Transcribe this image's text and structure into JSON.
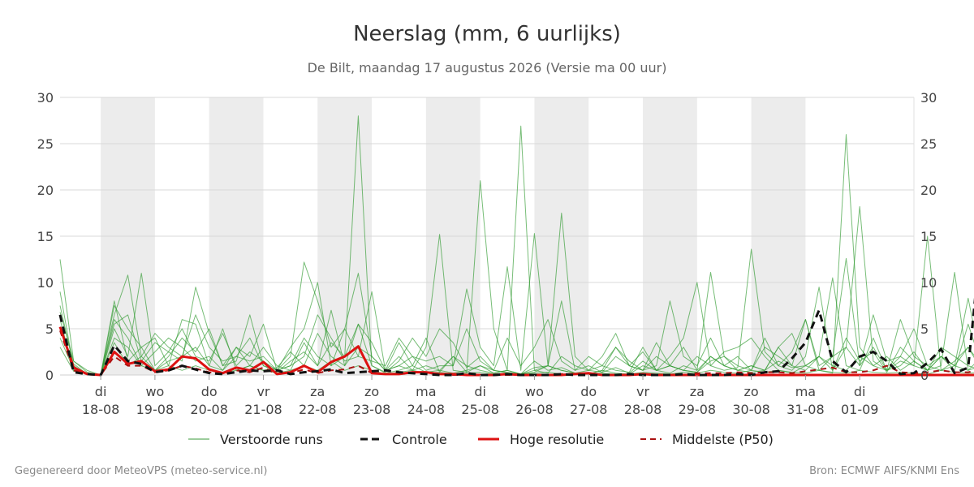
{
  "footer": {
    "left": "Gegenereerd door MeteoVPS (meteo-service.nl)",
    "right": "Bron: ECMWF AIFS/KNMI Ens"
  },
  "chart_data": {
    "type": "line",
    "title": "Neerslag (mm, 6 uurlijks)",
    "subtitle": "De Bilt, maandag 17 augustus 2026 (Versie ma 00 uur)",
    "ylim": [
      0,
      30
    ],
    "yticks": [
      0,
      5,
      10,
      15,
      20,
      25,
      30
    ],
    "xlim": [
      -0.75,
      15
    ],
    "x_ticks": [
      {
        "x": 0,
        "day": "di",
        "date": "18-08"
      },
      {
        "x": 1,
        "day": "wo",
        "date": "19-08"
      },
      {
        "x": 2,
        "day": "do",
        "date": "20-08"
      },
      {
        "x": 3,
        "day": "vr",
        "date": "21-08"
      },
      {
        "x": 4,
        "day": "za",
        "date": "22-08"
      },
      {
        "x": 5,
        "day": "zo",
        "date": "23-08"
      },
      {
        "x": 6,
        "day": "ma",
        "date": "24-08"
      },
      {
        "x": 7,
        "day": "di",
        "date": "25-08"
      },
      {
        "x": 8,
        "day": "wo",
        "date": "26-08"
      },
      {
        "x": 9,
        "day": "do",
        "date": "27-08"
      },
      {
        "x": 10,
        "day": "vr",
        "date": "28-08"
      },
      {
        "x": 11,
        "day": "za",
        "date": "29-08"
      },
      {
        "x": 12,
        "day": "zo",
        "date": "30-08"
      },
      {
        "x": 13,
        "day": "ma",
        "date": "31-08"
      },
      {
        "x": 14,
        "day": "di",
        "date": "01-09"
      }
    ],
    "shaded_days": [
      [
        0,
        1
      ],
      [
        2,
        3
      ],
      [
        4,
        5
      ],
      [
        6,
        7
      ],
      [
        8,
        9
      ],
      [
        10,
        11
      ],
      [
        12,
        13
      ]
    ],
    "grid": true,
    "legend_position": "bottom",
    "legend": [
      {
        "label": "Verstoorde runs",
        "color": "#3a9a3a",
        "style": "thin"
      },
      {
        "label": "Controle",
        "color": "#111111",
        "style": "dashed"
      },
      {
        "label": "Hoge resolutie",
        "color": "#dd1111",
        "style": "solid"
      },
      {
        "label": "Middelste (P50)",
        "color": "#aa1111",
        "style": "dashed-thin"
      }
    ],
    "series_x_start": -0.75,
    "series_x_step": 0.25,
    "series": [
      {
        "name": "Controle",
        "values": [
          6.5,
          0.3,
          0.1,
          0.0,
          3.2,
          1.5,
          1.2,
          0.3,
          0.5,
          1.0,
          0.6,
          0.2,
          0.1,
          0.3,
          0.5,
          0.4,
          0.5,
          0.1,
          0.3,
          0.4,
          0.6,
          0.2,
          0.3,
          0.4,
          0.5,
          0.3,
          0.2,
          0.1,
          0.0,
          0.0,
          0.2,
          0.0,
          0.0,
          0.1,
          0.0,
          0.0,
          0.0,
          0.1,
          0.0,
          0.0,
          0.0,
          0.0,
          0.1,
          0.0,
          0.0,
          0.0,
          0.1,
          0.0,
          0.0,
          0.0,
          0.1,
          0.0,
          0.3,
          0.4,
          1.8,
          3.5,
          7.0,
          1.5,
          0.3,
          2.0,
          2.5,
          1.5,
          0.1,
          0.2,
          1.3,
          2.8,
          0.2,
          0.8,
          15.3,
          9.0,
          2.0,
          0.5
        ]
      },
      {
        "name": "Hoge resolutie",
        "values": [
          5.2,
          0.8,
          0.1,
          0.0,
          2.5,
          1.2,
          1.5,
          0.4,
          0.6,
          2.0,
          1.8,
          0.6,
          0.2,
          0.8,
          0.5,
          1.4,
          0.1,
          0.3,
          1.0,
          0.3,
          1.4,
          2.0,
          3.1,
          0.2,
          0.1,
          0.1,
          0.3,
          0.3,
          0.1,
          0.1,
          0.0,
          0.0,
          0.0,
          0.1,
          0.0,
          0.0,
          0.0,
          0.0,
          0.1,
          0.2,
          0.0,
          0.0,
          0.0,
          0.1,
          0.0,
          0.0,
          0.0,
          0.0,
          0.0,
          0.0,
          0.0,
          0.0,
          0.0,
          0.0,
          0.0,
          0.0,
          0.0,
          0.0,
          0.0,
          0.0,
          0.0,
          0.0,
          0.0,
          0.0,
          0.0,
          0.0,
          0.0,
          0.0,
          0.0,
          0.0,
          0.0,
          0.0
        ]
      },
      {
        "name": "Middelste (P50)",
        "values": [
          4.8,
          0.5,
          0.1,
          0.0,
          2.0,
          1.0,
          1.0,
          0.3,
          0.5,
          1.0,
          0.7,
          0.3,
          0.1,
          0.5,
          0.3,
          0.8,
          0.1,
          0.2,
          0.6,
          0.2,
          0.5,
          0.6,
          1.0,
          0.2,
          0.1,
          0.1,
          0.2,
          0.2,
          0.1,
          0.0,
          0.0,
          0.0,
          0.0,
          0.0,
          0.0,
          0.0,
          0.0,
          0.1,
          0.1,
          0.1,
          0.0,
          0.0,
          0.0,
          0.1,
          0.0,
          0.0,
          0.0,
          0.2,
          0.2,
          0.2,
          0.3,
          0.2,
          0.3,
          0.3,
          0.2,
          0.4,
          0.6,
          0.8,
          0.3,
          0.3,
          0.5,
          1.0,
          0.3,
          0.2,
          0.3,
          0.5,
          0.3,
          0.3,
          0.6,
          0.5,
          0.3,
          0.2
        ]
      }
    ],
    "ensemble_values": [
      [
        12.5,
        1.5,
        0.5,
        0.0,
        7.5,
        5.0,
        3.0,
        0.5,
        2.0,
        4.0,
        2.5,
        5.0,
        1.0,
        3.0,
        2.0,
        5.5,
        0.5,
        2.0,
        12.2,
        8.0,
        3.0,
        5.0,
        11.0,
        2.0,
        0.5,
        3.5,
        1.0,
        4.0,
        0.3,
        2.0,
        1.0,
        0.5,
        0.2,
        0.5,
        0.1,
        0.8,
        1.0,
        0.5,
        0.2,
        0.1,
        0.5,
        3.0,
        1.0,
        2.5,
        0.5,
        2.0,
        4.0,
        10.0,
        1.0,
        2.5,
        3.0,
        4.0,
        2.0,
        0.5,
        0.2,
        1.0,
        2.0,
        0.5,
        4.0,
        1.5,
        2.5,
        0.3,
        3.0,
        1.5,
        0.5,
        2.0,
        1.0,
        3.0,
        1.0,
        2.0,
        0.5,
        1.5
      ],
      [
        9.0,
        0.8,
        0.2,
        0.0,
        6.5,
        10.8,
        2.0,
        4.5,
        3.0,
        2.0,
        6.5,
        3.0,
        1.5,
        2.0,
        1.5,
        2.0,
        0.5,
        3.0,
        5.0,
        10.0,
        1.0,
        2.0,
        28.0,
        1.0,
        0.3,
        1.5,
        4.0,
        2.0,
        5.0,
        3.5,
        0.8,
        2.0,
        0.5,
        0.2,
        0.1,
        0.5,
        0.2,
        2.0,
        1.0,
        0.5,
        0.3,
        0.8,
        0.2,
        1.5,
        0.5,
        1.0,
        0.5,
        0.3,
        2.0,
        1.0,
        0.5,
        0.3,
        0.5,
        1.5,
        0.8,
        1.0,
        0.5,
        0.2,
        26.0,
        3.0,
        1.0,
        2.0,
        0.5,
        1.5,
        0.5,
        3.0,
        2.0,
        1.0,
        0.5,
        2.0,
        1.0,
        0.5
      ],
      [
        7.5,
        1.0,
        0.1,
        0.0,
        5.0,
        2.0,
        11.0,
        1.0,
        2.5,
        1.5,
        9.5,
        4.5,
        1.0,
        1.5,
        6.5,
        1.0,
        0.5,
        1.0,
        2.0,
        6.5,
        4.0,
        1.5,
        2.0,
        9.0,
        0.5,
        1.0,
        0.5,
        3.0,
        15.2,
        0.5,
        0.3,
        1.0,
        0.5,
        0.3,
        0.1,
        1.5,
        0.5,
        0.8,
        0.2,
        0.5,
        2.0,
        4.5,
        1.0,
        0.5,
        3.5,
        1.0,
        0.5,
        2.0,
        1.0,
        0.5,
        0.8,
        13.6,
        2.5,
        1.0,
        0.5,
        2.0,
        9.5,
        0.5,
        3.0,
        18.2,
        1.5,
        0.5,
        2.0,
        1.0,
        15.0,
        0.5,
        1.5,
        3.0,
        0.5,
        1.0,
        2.0,
        1.0
      ],
      [
        6.0,
        0.5,
        0.2,
        0.0,
        8.0,
        1.5,
        3.0,
        4.0,
        1.0,
        6.0,
        5.5,
        1.0,
        5.0,
        0.5,
        1.0,
        3.0,
        1.0,
        0.5,
        3.5,
        1.0,
        7.0,
        1.0,
        5.5,
        3.5,
        0.5,
        2.0,
        0.5,
        1.0,
        0.5,
        2.0,
        0.3,
        21.0,
        5.0,
        0.5,
        26.9,
        0.5,
        1.0,
        17.5,
        2.0,
        0.5,
        1.0,
        0.5,
        0.3,
        3.0,
        0.5,
        1.0,
        0.5,
        0.3,
        1.5,
        2.0,
        0.5,
        1.0,
        0.5,
        3.0,
        4.5,
        1.0,
        2.0,
        10.5,
        1.0,
        0.5,
        4.0,
        0.5,
        1.0,
        2.5,
        0.5,
        1.0,
        11.1,
        0.5,
        2.0,
        1.0,
        3.0,
        9.2
      ],
      [
        5.0,
        1.2,
        0.1,
        0.0,
        4.0,
        3.0,
        1.0,
        2.5,
        4.0,
        3.0,
        1.5,
        2.0,
        0.5,
        3.0,
        1.0,
        0.5,
        0.8,
        2.5,
        1.0,
        4.5,
        2.0,
        1.0,
        3.0,
        2.0,
        0.5,
        1.0,
        2.0,
        0.5,
        1.0,
        1.0,
        9.3,
        3.0,
        1.0,
        11.7,
        0.5,
        15.3,
        1.0,
        8.0,
        0.5,
        1.0,
        0.3,
        2.0,
        1.0,
        0.5,
        2.0,
        1.0,
        3.0,
        0.5,
        11.1,
        2.0,
        1.0,
        0.5,
        3.0,
        2.0,
        1.0,
        6.0,
        0.5,
        2.0,
        12.6,
        1.0,
        3.0,
        0.5,
        6.0,
        2.0,
        1.0,
        0.5,
        1.0,
        8.3,
        1.0,
        0.5,
        0.5,
        2.0
      ],
      [
        4.0,
        0.6,
        0.1,
        0.0,
        6.0,
        4.0,
        1.0,
        0.5,
        1.5,
        2.0,
        3.0,
        1.0,
        0.5,
        2.0,
        4.0,
        1.0,
        0.3,
        1.5,
        2.5,
        1.0,
        3.5,
        2.0,
        5.5,
        1.0,
        0.2,
        0.5,
        1.0,
        0.3,
        0.5,
        0.2,
        0.5,
        1.0,
        0.2,
        0.5,
        0.1,
        0.3,
        1.0,
        0.5,
        0.2,
        0.1,
        0.5,
        0.2,
        0.1,
        1.0,
        0.5,
        0.2,
        1.0,
        0.5,
        2.0,
        1.0,
        0.5,
        1.0,
        0.5,
        3.0,
        1.0,
        0.5,
        2.0,
        1.0,
        0.5,
        2.0,
        1.0,
        0.5,
        1.5,
        1.0,
        0.5,
        2.0,
        1.0,
        0.5,
        1.0,
        0.5,
        2.0,
        1.0
      ],
      [
        3.0,
        0.4,
        0.1,
        0.0,
        3.5,
        1.0,
        2.0,
        0.5,
        1.0,
        0.5,
        1.0,
        0.5,
        0.2,
        0.5,
        1.0,
        0.5,
        0.2,
        0.5,
        1.0,
        0.5,
        1.5,
        0.5,
        1.0,
        0.5,
        0.1,
        0.3,
        0.5,
        0.2,
        0.3,
        0.1,
        0.2,
        0.3,
        0.1,
        0.2,
        0.1,
        0.2,
        0.3,
        0.1,
        0.1,
        0.1,
        0.2,
        0.1,
        0.1,
        0.3,
        0.2,
        0.1,
        0.3,
        0.2,
        0.5,
        0.3,
        0.2,
        0.5,
        0.3,
        0.5,
        0.3,
        0.2,
        0.5,
        0.3,
        0.2,
        0.5,
        0.3,
        0.2,
        0.3,
        0.2,
        0.1,
        0.5,
        0.3,
        0.2,
        0.3,
        0.2,
        0.5,
        0.3
      ],
      [
        6.8,
        1.5,
        0.3,
        0.0,
        5.5,
        6.5,
        1.5,
        3.5,
        2.5,
        5.0,
        2.0,
        1.5,
        4.5,
        1.0,
        2.5,
        1.5,
        0.5,
        1.0,
        4.0,
        2.0,
        1.0,
        5.0,
        2.0,
        1.5,
        1.0,
        4.0,
        2.0,
        1.5,
        2.0,
        1.0,
        5.0,
        1.5,
        0.5,
        4.0,
        1.0,
        3.0,
        6.0,
        1.5,
        0.5,
        2.0,
        1.0,
        3.0,
        1.5,
        0.5,
        1.0,
        8.0,
        2.0,
        1.0,
        4.0,
        1.0,
        2.0,
        0.5,
        4.0,
        1.0,
        2.5,
        6.0,
        1.0,
        2.0,
        3.0,
        1.0,
        6.5,
        1.5,
        2.0,
        5.0,
        1.0,
        2.0,
        0.5,
        5.5,
        1.0,
        3.0,
        2.0,
        4.0
      ]
    ]
  }
}
